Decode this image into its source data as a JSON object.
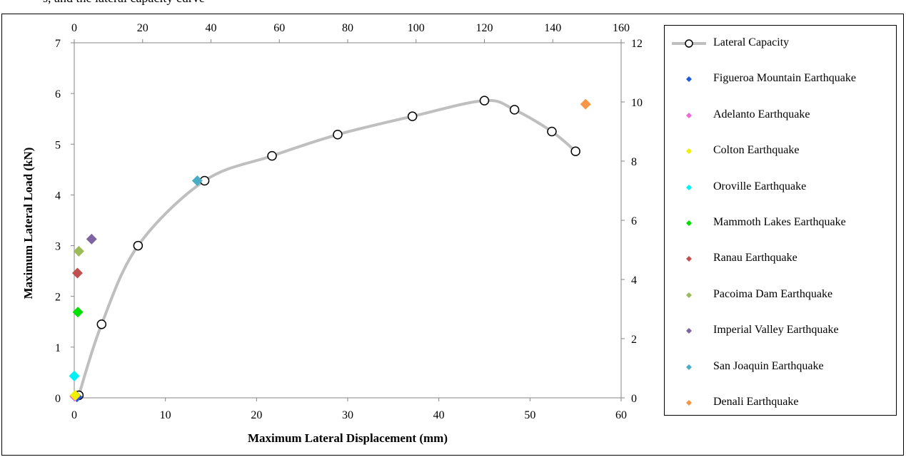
{
  "caption_fragment": "s, and the lateral capacity curve",
  "chart_data": {
    "type": "scatter",
    "title": "",
    "xlabel": "Maximum Lateral Displacement (mm)",
    "ylabel": "Maximum Lateral Load (kN)",
    "x_axis": {
      "min": 0,
      "max": 60,
      "step": 10
    },
    "y_axis": {
      "min": 0,
      "max": 7,
      "step": 1
    },
    "x2_axis": {
      "min": 0,
      "max": 160,
      "step": 20,
      "position": "top"
    },
    "y2_axis": {
      "min": 0,
      "max": 12,
      "step": 2,
      "position": "right"
    },
    "grid": false,
    "legend_position": "right",
    "curve": {
      "name": "Lateral Capacity",
      "color": "#bfbfbf",
      "marker": "open-circle",
      "x": [
        0.5,
        3,
        7,
        14.3,
        21.7,
        28.9,
        37.1,
        45,
        48.3,
        52.4,
        55
      ],
      "y": [
        0.05,
        1.45,
        3.0,
        4.28,
        4.77,
        5.19,
        5.55,
        5.86,
        5.68,
        5.25,
        4.86
      ]
    },
    "series": [
      {
        "name": "Figueroa Mountain Earthquake",
        "color": "#1f5bdb",
        "x": [
          0.3
        ],
        "y": [
          0.02
        ]
      },
      {
        "name": "Adelanto Earthquake",
        "color": "#ee6bd5",
        "x": [
          0.05
        ],
        "y": [
          0.03
        ]
      },
      {
        "name": "Colton Earthquake",
        "color": "#f0f000",
        "x": [
          0.1
        ],
        "y": [
          0.05
        ]
      },
      {
        "name": "Oroville Earthquake",
        "color": "#00f0f8",
        "x": [
          0
        ],
        "y": [
          0.43
        ]
      },
      {
        "name": "Mammoth Lakes Earthquake",
        "color": "#00e000",
        "x": [
          0.4
        ],
        "y": [
          1.69
        ]
      },
      {
        "name": "Ranau Earthquake",
        "color": "#c0504d",
        "x": [
          0.35
        ],
        "y": [
          2.46
        ]
      },
      {
        "name": "Pacoima Dam Earthquake",
        "color": "#9bbb59",
        "x": [
          0.5
        ],
        "y": [
          2.89
        ]
      },
      {
        "name": "Imperial Valley Earthquake",
        "color": "#8064a2",
        "x": [
          1.9
        ],
        "y": [
          3.13
        ]
      },
      {
        "name": "San Joaquin Earthquake",
        "color": "#4bacc6",
        "x": [
          13.5
        ],
        "y": [
          4.28
        ]
      },
      {
        "name": "Denali Earthquake",
        "color": "#f79646",
        "x": [
          56.1
        ],
        "y": [
          5.79
        ]
      }
    ]
  }
}
